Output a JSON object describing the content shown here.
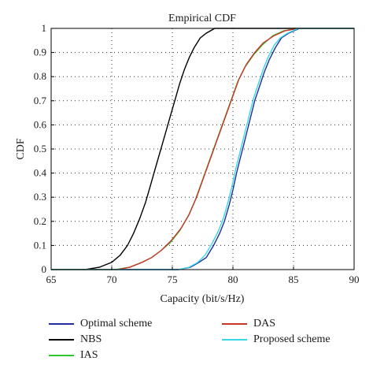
{
  "chart_data": {
    "type": "line",
    "title": "Empirical CDF",
    "xlabel": "Capacity (bit/s/Hz)",
    "ylabel": "CDF",
    "xlim": [
      65,
      90
    ],
    "ylim": [
      0,
      1
    ],
    "xticks": [
      65,
      70,
      75,
      80,
      85,
      90
    ],
    "yticks": [
      0,
      0.1,
      0.2,
      0.3,
      0.4,
      0.5,
      0.6,
      0.7,
      0.8,
      0.9,
      1
    ],
    "xtick_labels": [
      "65",
      "70",
      "75",
      "80",
      "85",
      "90"
    ],
    "ytick_labels": [
      "0",
      "0.1",
      "0.2",
      "0.3",
      "0.4",
      "0.5",
      "0.6",
      "0.7",
      "0.8",
      "0.9",
      "1"
    ],
    "grid": true,
    "legend_position": "below",
    "series": [
      {
        "name": "Optimal scheme",
        "color": "#1f2f9f",
        "x": [
          75.5,
          76.5,
          77.2,
          77.8,
          78.4,
          78.9,
          79.3,
          79.7,
          80.0,
          80.3,
          80.6,
          80.9,
          81.2,
          81.5,
          81.8,
          82.2,
          82.6,
          83.0,
          83.5,
          84.0,
          84.6,
          85.5,
          86.2
        ],
        "y": [
          0.0,
          0.01,
          0.03,
          0.05,
          0.1,
          0.15,
          0.2,
          0.27,
          0.33,
          0.4,
          0.46,
          0.52,
          0.58,
          0.64,
          0.7,
          0.76,
          0.82,
          0.87,
          0.92,
          0.96,
          0.98,
          1.0,
          1.0
        ]
      },
      {
        "name": "NBS",
        "color": "#000000",
        "x": [
          67.8,
          69.0,
          70.0,
          70.7,
          71.3,
          71.8,
          72.3,
          72.8,
          73.2,
          73.6,
          74.0,
          74.4,
          74.8,
          75.2,
          75.6,
          76.0,
          76.4,
          76.8,
          77.3,
          77.8,
          78.5,
          79.2
        ],
        "y": [
          0.0,
          0.01,
          0.03,
          0.06,
          0.1,
          0.15,
          0.21,
          0.28,
          0.35,
          0.42,
          0.49,
          0.56,
          0.63,
          0.7,
          0.77,
          0.83,
          0.88,
          0.92,
          0.96,
          0.98,
          1.0,
          1.0
        ]
      },
      {
        "name": "IAS",
        "color": "#2ec82e",
        "x": [
          70.3,
          71.5,
          72.5,
          73.3,
          74.1,
          74.8,
          75.6,
          76.3,
          76.9,
          77.4,
          77.9,
          78.4,
          78.9,
          79.4,
          79.9,
          80.4,
          81.0,
          81.7,
          82.4,
          83.3,
          84.2,
          85.3
        ],
        "y": [
          0.0,
          0.01,
          0.03,
          0.05,
          0.08,
          0.11,
          0.16,
          0.22,
          0.29,
          0.36,
          0.43,
          0.5,
          0.57,
          0.64,
          0.71,
          0.78,
          0.84,
          0.89,
          0.93,
          0.97,
          0.99,
          1.0
        ]
      },
      {
        "name": "DAS",
        "color": "#c8342a",
        "x": [
          70.5,
          71.5,
          72.5,
          73.3,
          74.1,
          74.9,
          75.7,
          76.4,
          77.0,
          77.5,
          78.0,
          78.5,
          79.0,
          79.5,
          80.0,
          80.5,
          81.1,
          81.8,
          82.5,
          83.4,
          84.3,
          85.4
        ],
        "y": [
          0.0,
          0.01,
          0.03,
          0.05,
          0.08,
          0.12,
          0.17,
          0.23,
          0.3,
          0.37,
          0.44,
          0.51,
          0.58,
          0.65,
          0.72,
          0.79,
          0.85,
          0.9,
          0.94,
          0.97,
          0.99,
          1.0
        ]
      },
      {
        "name": "Proposed scheme",
        "color": "#3ad6e6",
        "x": [
          75.5,
          76.4,
          77.1,
          77.7,
          78.3,
          78.8,
          79.2,
          79.6,
          79.9,
          80.2,
          80.5,
          80.8,
          81.1,
          81.4,
          81.7,
          82.1,
          82.5,
          82.9,
          83.4,
          83.9,
          84.5,
          85.4,
          86.2
        ],
        "y": [
          0.0,
          0.01,
          0.03,
          0.06,
          0.11,
          0.16,
          0.21,
          0.28,
          0.34,
          0.41,
          0.47,
          0.53,
          0.59,
          0.65,
          0.71,
          0.77,
          0.83,
          0.88,
          0.93,
          0.96,
          0.98,
          1.0,
          1.0
        ]
      }
    ]
  }
}
